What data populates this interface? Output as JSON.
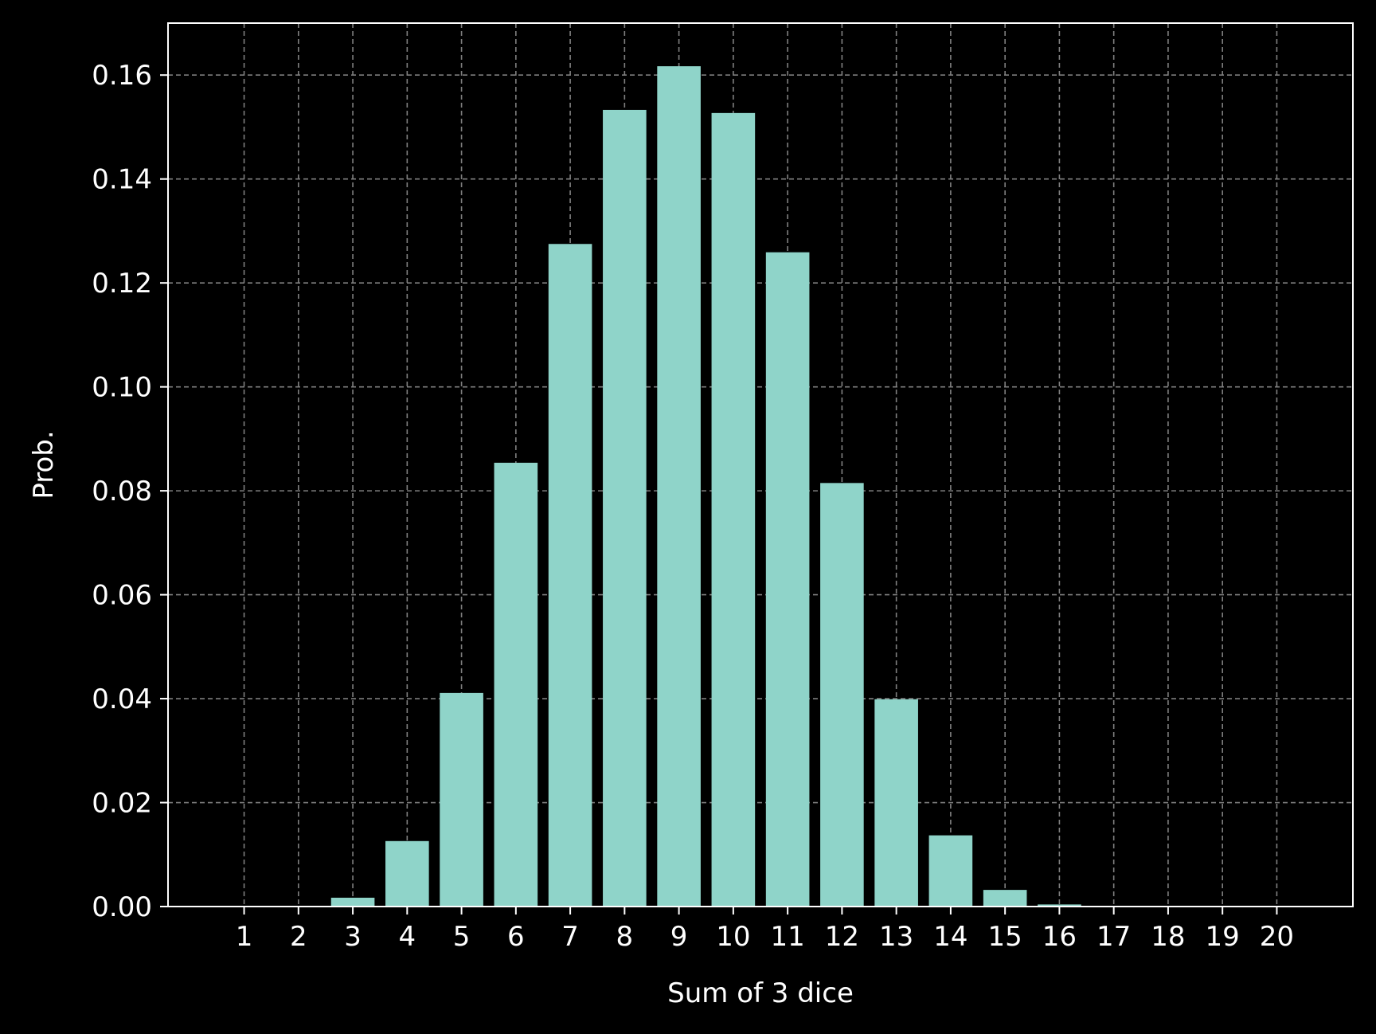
{
  "chart_data": {
    "type": "bar",
    "xlabel": "Sum of 3 dice",
    "ylabel": "Prob.",
    "categories": [
      "1",
      "2",
      "3",
      "4",
      "5",
      "6",
      "7",
      "8",
      "9",
      "10",
      "11",
      "12",
      "13",
      "14",
      "15",
      "16",
      "17",
      "18",
      "19",
      "20"
    ],
    "x": [
      1,
      2,
      3,
      4,
      5,
      6,
      7,
      8,
      9,
      10,
      11,
      12,
      13,
      14,
      15,
      16,
      17,
      18,
      19,
      20
    ],
    "values": [
      0,
      0,
      0.0017,
      0.0126,
      0.0411,
      0.0854,
      0.1275,
      0.1533,
      0.1617,
      0.1527,
      0.1259,
      0.0815,
      0.0399,
      0.0137,
      0.0032,
      0.0004,
      0,
      0,
      0,
      0
    ],
    "xlim": [
      -0.4,
      21.4
    ],
    "ylim": [
      0,
      0.17
    ],
    "yticks": [
      0,
      0.02,
      0.04,
      0.06,
      0.08,
      0.1,
      0.12,
      0.14,
      0.16
    ],
    "ytick_labels": [
      "0.00",
      "0.02",
      "0.04",
      "0.06",
      "0.08",
      "0.10",
      "0.12",
      "0.14",
      "0.16"
    ],
    "grid": true,
    "colors": {
      "background": "#000000",
      "bar": "#8fd4c9",
      "grid": "#808080",
      "axes": "#ffffff",
      "text": "#ffffff"
    }
  }
}
